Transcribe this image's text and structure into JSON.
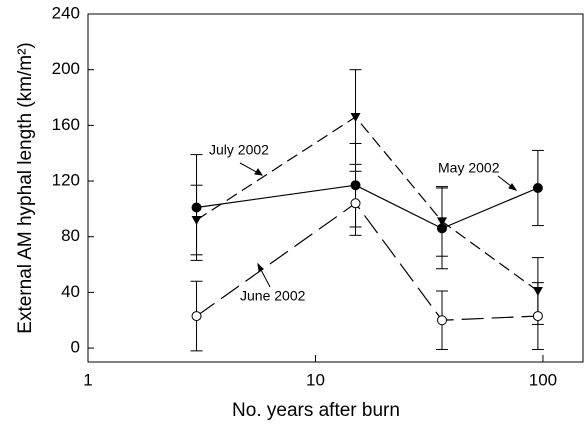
{
  "chart_data": {
    "type": "line",
    "xlabel": "No. years after burn",
    "ylabel": "External AM hyphal length (km/m²)",
    "x": [
      3,
      15,
      36,
      95
    ],
    "xlim": [
      1,
      150
    ],
    "xscale": "log",
    "xticks": [
      1,
      10,
      100
    ],
    "ylim": [
      -10,
      240
    ],
    "yticks": [
      0,
      40,
      80,
      120,
      160,
      200,
      240
    ],
    "series": [
      {
        "name": "May 2002",
        "color": "#000000",
        "marker": "filled-circle",
        "dash": "none",
        "values": [
          101,
          117,
          86,
          115
        ],
        "errors": [
          38,
          30,
          29,
          27
        ]
      },
      {
        "name": "July 2002",
        "color": "#000000",
        "marker": "triangle-down",
        "dash": "12,6",
        "values": [
          92,
          166,
          91,
          41
        ],
        "errors": [
          25,
          34,
          25,
          24
        ]
      },
      {
        "name": "June 2002",
        "color": "#000000",
        "marker": "open-circle",
        "dash": "22,8",
        "values": [
          23,
          104,
          20,
          23
        ],
        "errors": [
          25,
          23,
          21,
          24
        ]
      }
    ]
  }
}
